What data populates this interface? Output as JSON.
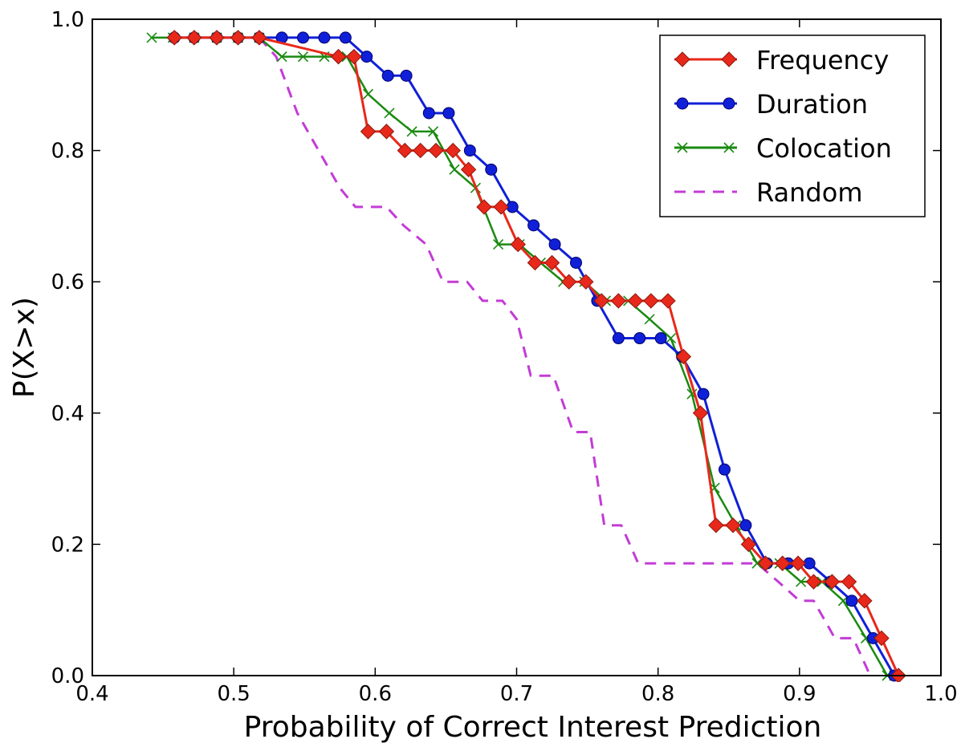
{
  "chart_data": {
    "type": "line",
    "title": "",
    "xlabel": "Probability of Correct Interest Prediction",
    "ylabel": "P(X>x)",
    "xlim": [
      0.4,
      1.0
    ],
    "ylim": [
      0.0,
      1.0
    ],
    "xticks": [
      "0.4",
      "0.5",
      "0.6",
      "0.7",
      "0.8",
      "0.9",
      "1.0"
    ],
    "yticks": [
      "0.0",
      "0.2",
      "0.4",
      "0.6",
      "0.8",
      "1.0"
    ],
    "grid": false,
    "legend_position": "top-right",
    "series": [
      {
        "name": "Frequency",
        "color": "#e8281a",
        "marker": "diamond",
        "linestyle": "solid",
        "x": [
          0.458,
          0.472,
          0.488,
          0.503,
          0.518,
          0.574,
          0.585,
          0.595,
          0.608,
          0.621,
          0.632,
          0.643,
          0.655,
          0.666,
          0.677,
          0.689,
          0.701,
          0.713,
          0.725,
          0.737,
          0.749,
          0.76,
          0.772,
          0.784,
          0.795,
          0.807,
          0.818,
          0.83,
          0.841,
          0.853,
          0.864,
          0.876,
          0.888,
          0.899,
          0.91,
          0.923,
          0.935,
          0.946,
          0.958,
          0.97
        ],
        "y": [
          0.972,
          0.972,
          0.972,
          0.972,
          0.972,
          0.943,
          0.943,
          0.829,
          0.829,
          0.8,
          0.8,
          0.8,
          0.8,
          0.771,
          0.714,
          0.714,
          0.657,
          0.629,
          0.629,
          0.6,
          0.6,
          0.571,
          0.571,
          0.571,
          0.571,
          0.571,
          0.486,
          0.4,
          0.229,
          0.229,
          0.2,
          0.171,
          0.171,
          0.171,
          0.143,
          0.143,
          0.143,
          0.114,
          0.057,
          0.0
        ]
      },
      {
        "name": "Duration",
        "color": "#1020d8",
        "marker": "circle",
        "linestyle": "solid",
        "x": [
          0.458,
          0.472,
          0.488,
          0.503,
          0.518,
          0.534,
          0.549,
          0.564,
          0.579,
          0.594,
          0.609,
          0.622,
          0.638,
          0.652,
          0.667,
          0.682,
          0.697,
          0.712,
          0.727,
          0.742,
          0.757,
          0.772,
          0.787,
          0.802,
          0.817,
          0.832,
          0.847,
          0.862,
          0.877,
          0.892,
          0.907,
          0.922,
          0.937,
          0.952,
          0.967
        ],
        "y": [
          0.972,
          0.972,
          0.972,
          0.972,
          0.972,
          0.972,
          0.972,
          0.972,
          0.972,
          0.943,
          0.914,
          0.914,
          0.857,
          0.857,
          0.8,
          0.771,
          0.714,
          0.686,
          0.657,
          0.629,
          0.571,
          0.514,
          0.514,
          0.514,
          0.486,
          0.429,
          0.314,
          0.229,
          0.171,
          0.171,
          0.171,
          0.143,
          0.114,
          0.057,
          0.0
        ]
      },
      {
        "name": "Colocation",
        "color": "#1a8a10",
        "marker": "x",
        "linestyle": "solid",
        "x": [
          0.442,
          0.457,
          0.472,
          0.488,
          0.503,
          0.518,
          0.534,
          0.549,
          0.564,
          0.58,
          0.595,
          0.61,
          0.626,
          0.641,
          0.656,
          0.671,
          0.687,
          0.702,
          0.717,
          0.733,
          0.748,
          0.763,
          0.779,
          0.794,
          0.809,
          0.824,
          0.84,
          0.855,
          0.87,
          0.886,
          0.901,
          0.916,
          0.931,
          0.947,
          0.962,
          0.967
        ],
        "y": [
          0.972,
          0.972,
          0.972,
          0.972,
          0.972,
          0.972,
          0.943,
          0.943,
          0.943,
          0.943,
          0.886,
          0.857,
          0.829,
          0.829,
          0.771,
          0.743,
          0.657,
          0.657,
          0.629,
          0.6,
          0.6,
          0.571,
          0.571,
          0.543,
          0.514,
          0.429,
          0.286,
          0.229,
          0.171,
          0.171,
          0.143,
          0.143,
          0.114,
          0.057,
          0.0,
          0.0
        ]
      },
      {
        "name": "Random",
        "color": "#c33cd6",
        "marker": "none",
        "linestyle": "dashed",
        "x": [
          0.518,
          0.53,
          0.545,
          0.56,
          0.575,
          0.586,
          0.608,
          0.62,
          0.636,
          0.648,
          0.665,
          0.676,
          0.69,
          0.7,
          0.71,
          0.726,
          0.74,
          0.752,
          0.762,
          0.774,
          0.786,
          0.8,
          0.83,
          0.87,
          0.885,
          0.9,
          0.91,
          0.925,
          0.938,
          0.95
        ],
        "y": [
          0.972,
          0.943,
          0.857,
          0.8,
          0.743,
          0.714,
          0.714,
          0.686,
          0.657,
          0.6,
          0.6,
          0.571,
          0.571,
          0.543,
          0.457,
          0.457,
          0.371,
          0.371,
          0.229,
          0.229,
          0.171,
          0.171,
          0.171,
          0.171,
          0.143,
          0.114,
          0.114,
          0.057,
          0.057,
          0.0
        ]
      }
    ]
  }
}
